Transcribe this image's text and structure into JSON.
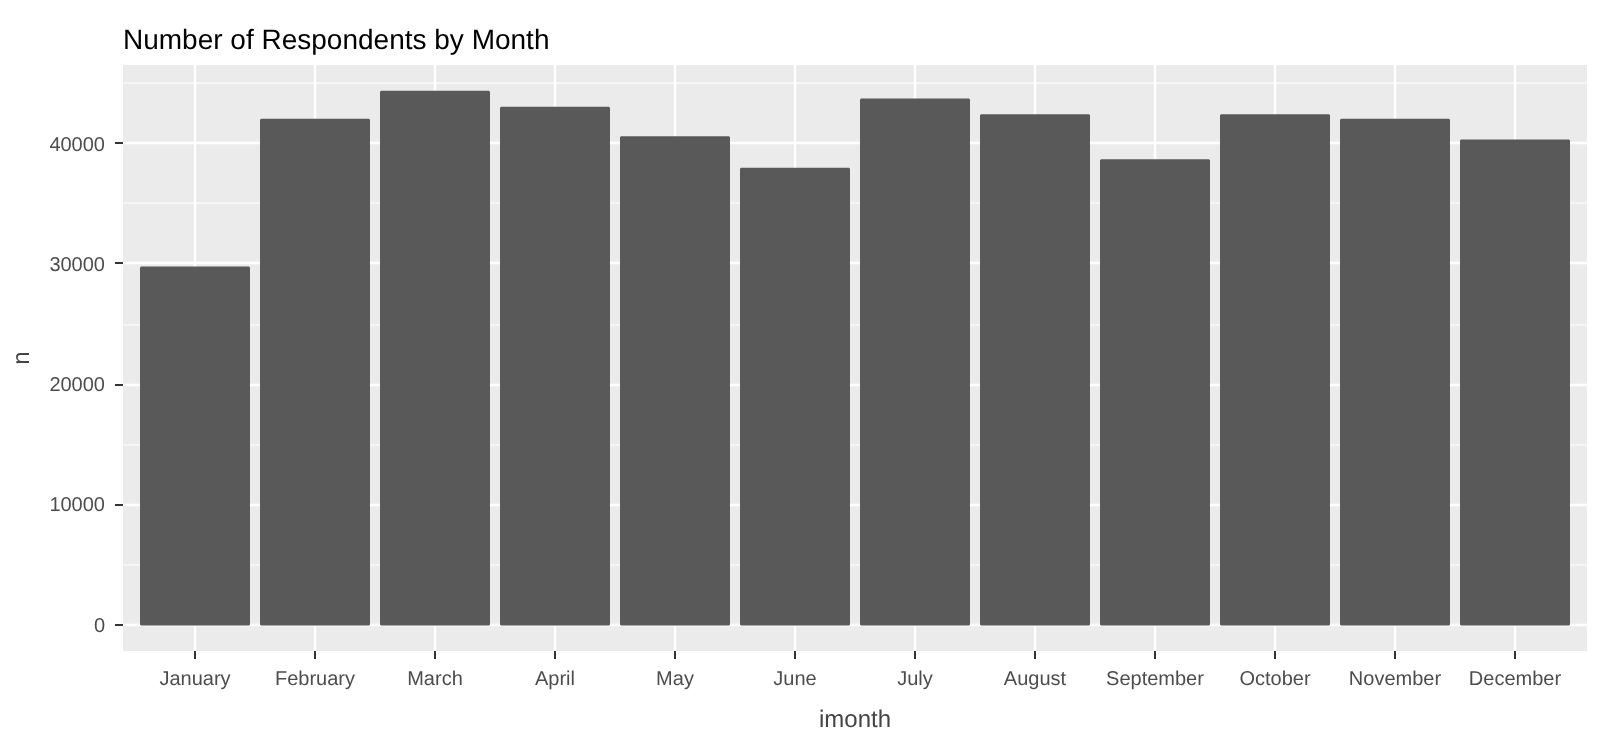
{
  "chart_data": {
    "type": "bar",
    "title": "Number of Respondents by Month",
    "xlabel": "imonth",
    "ylabel": "n",
    "categories": [
      "January",
      "February",
      "March",
      "April",
      "May",
      "June",
      "July",
      "August",
      "September",
      "October",
      "November",
      "December"
    ],
    "values": [
      29700,
      42000,
      44330,
      43000,
      40540,
      37910,
      43690,
      42360,
      38620,
      42360,
      41990,
      40270
    ],
    "color": "#595959",
    "ylim": [
      -2200,
      46550
    ],
    "yticks": [
      0,
      10000,
      20000,
      30000,
      40000
    ],
    "grid": true
  }
}
